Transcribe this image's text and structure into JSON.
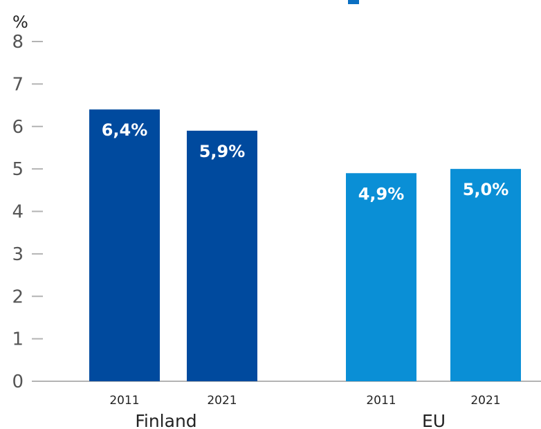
{
  "chart_data": {
    "type": "bar",
    "title": "",
    "ylabel": "%",
    "xlabel": "",
    "ylim": [
      0,
      8
    ],
    "yticks": [
      "0",
      "1",
      "2",
      "3",
      "4",
      "5",
      "6",
      "7",
      "8"
    ],
    "grid": false,
    "groups": [
      {
        "label": "Finland",
        "color": "#004a9e",
        "bars": [
          {
            "category": "2011",
            "value": 6.4,
            "data_label": "6,4%"
          },
          {
            "category": "2021",
            "value": 5.9,
            "data_label": "5,9%"
          }
        ]
      },
      {
        "label": "EU",
        "color": "#0a8fd6",
        "bars": [
          {
            "category": "2011",
            "value": 4.9,
            "data_label": "4,9%"
          },
          {
            "category": "2021",
            "value": 5.0,
            "data_label": "5,0%"
          }
        ]
      }
    ]
  },
  "colors": {
    "axis": "#b3b3b3",
    "tick_text": "#555555",
    "label_text": "#222222",
    "title_fragment": "#0a6fc2"
  }
}
